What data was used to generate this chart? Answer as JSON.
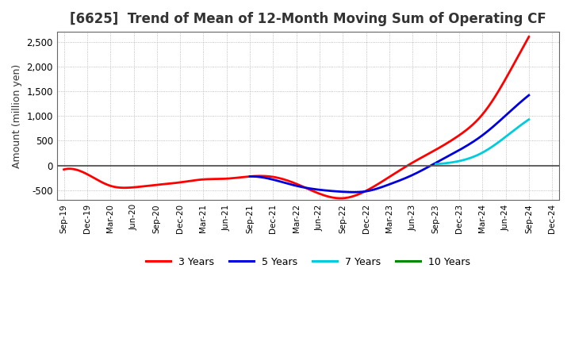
{
  "title": "[6625]  Trend of Mean of 12-Month Moving Sum of Operating CF",
  "ylabel": "Amount (million yen)",
  "background_color": "#ffffff",
  "grid_color": "#999999",
  "zero_line_color": "#555555",
  "ylim": [
    -700,
    2700
  ],
  "yticks": [
    -500,
    0,
    500,
    1000,
    1500,
    2000,
    2500
  ],
  "xtick_labels": [
    "Sep-19",
    "Dec-19",
    "Mar-20",
    "Jun-20",
    "Sep-20",
    "Dec-20",
    "Mar-21",
    "Jun-21",
    "Sep-21",
    "Dec-21",
    "Mar-22",
    "Jun-22",
    "Sep-22",
    "Dec-22",
    "Mar-23",
    "Jun-23",
    "Sep-23",
    "Dec-23",
    "Mar-24",
    "Jun-24",
    "Sep-24",
    "Dec-24"
  ],
  "series": {
    "3 Years": {
      "color": "#ff0000",
      "linewidth": 2.0,
      "x": [
        0,
        1,
        2,
        3,
        4,
        5,
        6,
        7,
        8,
        9,
        10,
        11,
        12,
        13,
        14,
        15,
        16,
        17,
        18,
        19,
        20
      ],
      "y": [
        -80,
        -175,
        -410,
        -440,
        -390,
        -340,
        -280,
        -265,
        -220,
        -230,
        -370,
        -570,
        -660,
        -510,
        -230,
        60,
        320,
        610,
        1030,
        1750,
        2600
      ]
    },
    "5 Years": {
      "color": "#0000dd",
      "linewidth": 2.0,
      "x": [
        8,
        9,
        10,
        11,
        12,
        13,
        14,
        15,
        16,
        17,
        18,
        19,
        20
      ],
      "y": [
        -220,
        -285,
        -410,
        -490,
        -530,
        -520,
        -380,
        -190,
        55,
        310,
        610,
        1010,
        1420
      ]
    },
    "7 Years": {
      "color": "#00ccdd",
      "linewidth": 2.0,
      "x": [
        16,
        17,
        18,
        19,
        20
      ],
      "y": [
        30,
        90,
        260,
        580,
        930
      ]
    },
    "10 Years": {
      "color": "#008800",
      "linewidth": 2.0,
      "x": [],
      "y": []
    }
  },
  "legend_labels": [
    "3 Years",
    "5 Years",
    "7 Years",
    "10 Years"
  ],
  "legend_colors": [
    "#ff0000",
    "#0000dd",
    "#00ccdd",
    "#008800"
  ],
  "title_color": "#333333",
  "title_fontsize": 12,
  "spine_color": "#666666"
}
